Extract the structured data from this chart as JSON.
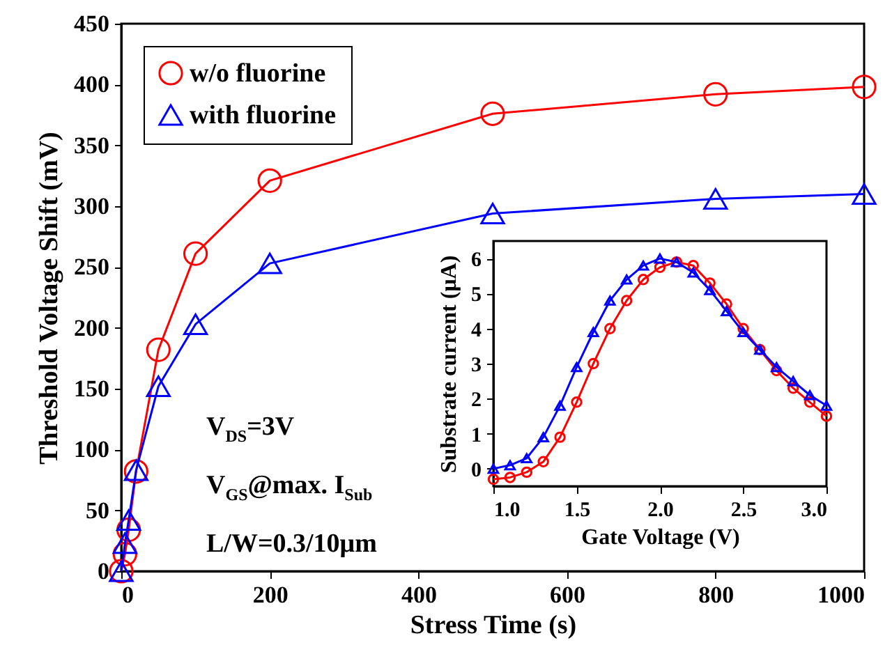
{
  "chart_data": [
    {
      "type": "line",
      "xlabel": "Stress Time (s)",
      "ylabel": "Threshold Voltage Shift (mV)",
      "xlim": [
        0,
        1000
      ],
      "ylim": [
        0,
        450
      ],
      "xticks": [
        0,
        200,
        400,
        600,
        800,
        1000
      ],
      "yticks": [
        0,
        50,
        100,
        150,
        200,
        250,
        300,
        350,
        400,
        450
      ],
      "legend": "top left",
      "grid": false,
      "annotations": [
        "V$_{DS}$=3V",
        "V$_{GS}$@max. I$_{Sub}$",
        "L/W=0.3/10μm"
      ],
      "series": [
        {
          "name": "w/o fluorine",
          "color": "#ff0000",
          "marker": "circle",
          "x": [
            0,
            5,
            10,
            20,
            50,
            100,
            200,
            500,
            800,
            1000
          ],
          "values": [
            0,
            14,
            34,
            82,
            182,
            261,
            321,
            376,
            392,
            398
          ]
        },
        {
          "name": "with fluorine",
          "color": "#0000ff",
          "marker": "triangle",
          "x": [
            0,
            5,
            10,
            20,
            50,
            100,
            200,
            500,
            800,
            1000
          ],
          "values": [
            0,
            23,
            42,
            83,
            152,
            203,
            253,
            294,
            306,
            310
          ]
        }
      ]
    },
    {
      "type": "line",
      "xlabel": "Gate Voltage (V)",
      "ylabel": "Substrate current (μA)",
      "xlim": [
        1,
        3
      ],
      "ylim": [
        -0.5,
        6.5
      ],
      "xticks": [
        {
          "value": 1,
          "label": "1.0"
        },
        {
          "value": 1.5,
          "label": "1.5"
        },
        {
          "value": 2,
          "label": "2.0"
        },
        {
          "value": 2.5,
          "label": "2.5"
        },
        {
          "value": 3,
          "label": "3.0"
        }
      ],
      "yticks": [
        0,
        1,
        2,
        3,
        4,
        5,
        6
      ],
      "grid": false,
      "series": [
        {
          "color": "#ff0000",
          "marker": "circle",
          "x": [
            1.0,
            1.1,
            1.2,
            1.3,
            1.4,
            1.5,
            1.6,
            1.7,
            1.8,
            1.9,
            2.0,
            2.1,
            2.2,
            2.3,
            2.4,
            2.5,
            2.6,
            2.7,
            2.8,
            2.9,
            3.0
          ],
          "values": [
            -0.3,
            -0.25,
            -0.1,
            0.2,
            0.9,
            1.9,
            3.0,
            4.0,
            4.8,
            5.4,
            5.75,
            5.9,
            5.8,
            5.3,
            4.7,
            4.0,
            3.4,
            2.8,
            2.3,
            1.9,
            1.5
          ]
        },
        {
          "color": "#0000ff",
          "marker": "triangle",
          "x": [
            1.0,
            1.1,
            1.2,
            1.3,
            1.4,
            1.5,
            1.6,
            1.7,
            1.8,
            1.9,
            2.0,
            2.1,
            2.2,
            2.3,
            2.4,
            2.5,
            2.6,
            2.7,
            2.8,
            2.9,
            3.0
          ],
          "values": [
            0.0,
            0.1,
            0.3,
            0.9,
            1.8,
            2.9,
            3.9,
            4.8,
            5.4,
            5.8,
            6.0,
            5.9,
            5.6,
            5.1,
            4.5,
            3.9,
            3.4,
            2.9,
            2.5,
            2.1,
            1.8
          ]
        }
      ]
    }
  ]
}
